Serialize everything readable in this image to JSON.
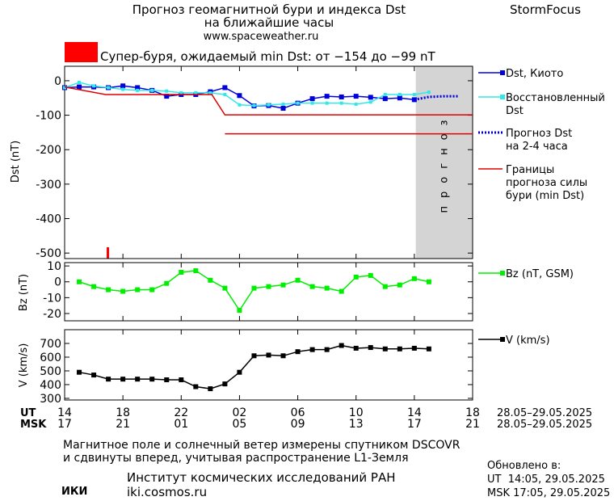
{
  "header": {
    "title_line1": "Прогноз геомагнитной бури и индекса Dst",
    "title_line2": "на ближайшие часы",
    "url": "www.spaceweather.ru",
    "brand": "StormFocus",
    "alert": "Супер-буря, ожидаемый min Dst: от −154 до −99 nT"
  },
  "x_axis": {
    "ut_label": "UT",
    "msk_label": "MSK",
    "ut_dates": "28.05–29.05.2025",
    "msk_dates": "28.05–29.05.2025",
    "xlim": [
      0,
      28
    ],
    "xticks": [
      {
        "value": 0,
        "label": "14"
      },
      {
        "value": 4,
        "label": "18"
      },
      {
        "value": 8,
        "label": "22"
      },
      {
        "value": 12,
        "label": "02"
      },
      {
        "value": 16,
        "label": "06"
      },
      {
        "value": 20,
        "label": "10"
      },
      {
        "value": 24,
        "label": "14"
      },
      {
        "value": 28,
        "label": "18"
      }
    ],
    "xticks_msk": [
      {
        "value": 0,
        "label": "17"
      },
      {
        "value": 4,
        "label": "21"
      },
      {
        "value": 8,
        "label": "01"
      },
      {
        "value": 12,
        "label": "05"
      },
      {
        "value": 16,
        "label": "09"
      },
      {
        "value": 20,
        "label": "13"
      },
      {
        "value": 24,
        "label": "17"
      },
      {
        "value": 28,
        "label": "21"
      }
    ]
  },
  "chart_data": [
    {
      "type": "line",
      "y_label": "Dst (nT)",
      "ylim": [
        -516,
        42
      ],
      "yticks": [
        0,
        -100,
        -200,
        -300,
        -400,
        -500
      ],
      "forecast_xlim": [
        24.1,
        28
      ],
      "forecast_label": "прогноз",
      "series": [
        {
          "name": "Dst, Киото",
          "color": "#0000dd",
          "marker": "square",
          "dash": false,
          "x": [
            0,
            1,
            2,
            3,
            4,
            5,
            6,
            7,
            8,
            9,
            10,
            11,
            12,
            13,
            14,
            15,
            16,
            17,
            18,
            19,
            20,
            21,
            22,
            23,
            24
          ],
          "values": [
            -20,
            -18,
            -18,
            -20,
            -15,
            -20,
            -28,
            -45,
            -40,
            -40,
            -32,
            -20,
            -43,
            -73,
            -72,
            -80,
            -65,
            -52,
            -45,
            -47,
            -45,
            -48,
            -52,
            -50,
            -55
          ]
        },
        {
          "name": "Восстановленный\nDst",
          "color": "#33e8e8",
          "marker": "small",
          "dash": false,
          "x": [
            0,
            1,
            2,
            3,
            4,
            5,
            6,
            7,
            8,
            9,
            10,
            11,
            12,
            13,
            14,
            15,
            16,
            17,
            18,
            19,
            20,
            21,
            22,
            23,
            24,
            25
          ],
          "values": [
            -20,
            -5,
            -15,
            -20,
            -25,
            -28,
            -28,
            -30,
            -35,
            -35,
            -35,
            -40,
            -70,
            -72,
            -70,
            -68,
            -65,
            -65,
            -65,
            -65,
            -68,
            -62,
            -40,
            -40,
            -40,
            -33
          ]
        },
        {
          "name": "Прогноз Dst\nна 2-4 часа",
          "color": "#0000dd",
          "marker": "none",
          "dash": true,
          "x": [
            24,
            25,
            26,
            27
          ],
          "values": [
            -55,
            -47,
            -45,
            -45
          ]
        },
        {
          "name": "Границы\nпрогноза силы\nбури (min Dst)",
          "color": "#e00000",
          "marker": "none",
          "dash": false,
          "x": [
            0,
            2.8,
            10.1,
            11,
            28,
            null,
            11,
            28
          ],
          "values": [
            -18,
            -40,
            -40,
            -99,
            -99,
            null,
            -154,
            -154
          ]
        }
      ]
    },
    {
      "type": "line",
      "y_label": "Bz (nT)",
      "ylim": [
        -24.6,
        12.1
      ],
      "yticks": [
        10,
        0,
        -10,
        -20
      ],
      "series": [
        {
          "name": "Bz (nT, GSM)",
          "color": "#00ee00",
          "marker": "square",
          "dash": false,
          "x": [
            1,
            2,
            3,
            4,
            5,
            6,
            7,
            8,
            9,
            10,
            11,
            12,
            13,
            14,
            15,
            16,
            17,
            18,
            19,
            20,
            21,
            22,
            23,
            24,
            25
          ],
          "values": [
            0,
            -3,
            -5,
            -6,
            -5,
            -5,
            -1,
            6,
            7,
            1,
            -4,
            -18,
            -4,
            -3,
            -2,
            1,
            -3,
            -4,
            -6,
            3,
            4,
            -3,
            -2,
            2,
            0
          ]
        }
      ]
    },
    {
      "type": "line",
      "y_label": "V (km/s)",
      "ylim": [
        288,
        800
      ],
      "yticks": [
        700,
        600,
        500,
        400,
        300
      ],
      "series": [
        {
          "name": "V (km/s)",
          "color": "#000000",
          "marker": "square",
          "dash": false,
          "x": [
            1,
            2,
            3,
            4,
            5,
            6,
            7,
            8,
            9,
            10,
            11,
            12,
            13,
            14,
            15,
            16,
            17,
            18,
            19,
            20,
            21,
            22,
            23,
            24,
            25
          ],
          "values": [
            490,
            470,
            440,
            440,
            440,
            440,
            435,
            435,
            385,
            370,
            405,
            490,
            610,
            615,
            610,
            640,
            655,
            655,
            685,
            665,
            670,
            660,
            660,
            665,
            660
          ]
        }
      ]
    }
  ],
  "footer": {
    "note_line1": "Магнитное поле и солнечный ветер измерены спутником DSCOVR",
    "note_line2": "и сдвинуты вперед, учитывая распространение L1-Земля",
    "logo": "ИКИ",
    "institute": "Институт космических исследований РАН",
    "site": "iki.cosmos.ru",
    "updated": "Обновлено в:",
    "updated_ut": "UT  14:05, 29.05.2025",
    "updated_msk": "MSK 17:05, 29.05.2025"
  }
}
